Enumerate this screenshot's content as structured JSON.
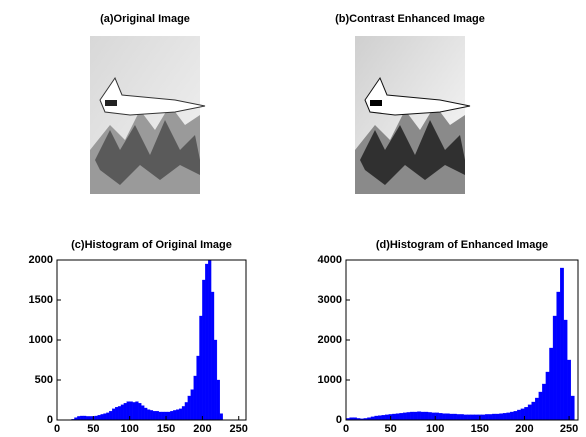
{
  "images": [
    {
      "title": "(a)Original Image"
    },
    {
      "title": "(b)Contrast Enhanced Image"
    }
  ],
  "chart_data": [
    {
      "type": "histogram",
      "title": "(c)Histogram of Original Image",
      "color": "#0000ff",
      "xlim": [
        0,
        260
      ],
      "xticks": [
        0,
        50,
        100,
        150,
        200,
        250
      ],
      "ylim": [
        0,
        2000
      ],
      "yticks": [
        0,
        500,
        1000,
        1500,
        2000
      ],
      "bins": [
        0,
        4,
        8,
        12,
        16,
        20,
        24,
        28,
        32,
        36,
        40,
        44,
        48,
        52,
        56,
        60,
        64,
        68,
        72,
        76,
        80,
        84,
        88,
        92,
        96,
        100,
        104,
        108,
        112,
        116,
        120,
        124,
        128,
        132,
        136,
        140,
        144,
        148,
        152,
        156,
        160,
        164,
        168,
        172,
        176,
        180,
        184,
        188,
        192,
        196,
        200,
        204,
        208,
        212,
        216,
        220,
        224,
        228,
        232,
        236,
        240,
        244,
        248,
        252,
        256
      ],
      "counts": [
        0,
        0,
        0,
        0,
        0,
        10,
        30,
        45,
        50,
        50,
        45,
        45,
        45,
        50,
        60,
        70,
        80,
        90,
        110,
        140,
        160,
        170,
        190,
        210,
        230,
        230,
        220,
        230,
        210,
        180,
        150,
        130,
        120,
        110,
        110,
        100,
        100,
        100,
        100,
        110,
        120,
        130,
        140,
        170,
        220,
        300,
        380,
        550,
        800,
        1300,
        1750,
        1950,
        2000,
        1600,
        1000,
        500,
        80,
        0,
        0,
        0,
        0,
        0,
        0,
        0
      ]
    },
    {
      "type": "histogram",
      "title": "(d)Histogram of Enhanced Image",
      "color": "#0000ff",
      "xlim": [
        0,
        260
      ],
      "xticks": [
        0,
        50,
        100,
        150,
        200,
        250
      ],
      "ylim": [
        0,
        4000
      ],
      "yticks": [
        0,
        1000,
        2000,
        3000,
        4000
      ],
      "bins": [
        0,
        4,
        8,
        12,
        16,
        20,
        24,
        28,
        32,
        36,
        40,
        44,
        48,
        52,
        56,
        60,
        64,
        68,
        72,
        76,
        80,
        84,
        88,
        92,
        96,
        100,
        104,
        108,
        112,
        116,
        120,
        124,
        128,
        132,
        136,
        140,
        144,
        148,
        152,
        156,
        160,
        164,
        168,
        172,
        176,
        180,
        184,
        188,
        192,
        196,
        200,
        204,
        208,
        212,
        216,
        220,
        224,
        228,
        232,
        236,
        240,
        244,
        248,
        252,
        256
      ],
      "counts": [
        40,
        60,
        60,
        40,
        30,
        40,
        60,
        80,
        100,
        110,
        120,
        130,
        140,
        150,
        160,
        170,
        180,
        190,
        200,
        200,
        210,
        200,
        200,
        190,
        180,
        180,
        170,
        160,
        160,
        150,
        150,
        140,
        140,
        130,
        130,
        130,
        130,
        130,
        130,
        140,
        140,
        150,
        150,
        160,
        170,
        180,
        200,
        220,
        250,
        280,
        320,
        380,
        450,
        550,
        700,
        900,
        1200,
        1800,
        2600,
        3200,
        3800,
        2500,
        1500,
        600
      ]
    }
  ]
}
